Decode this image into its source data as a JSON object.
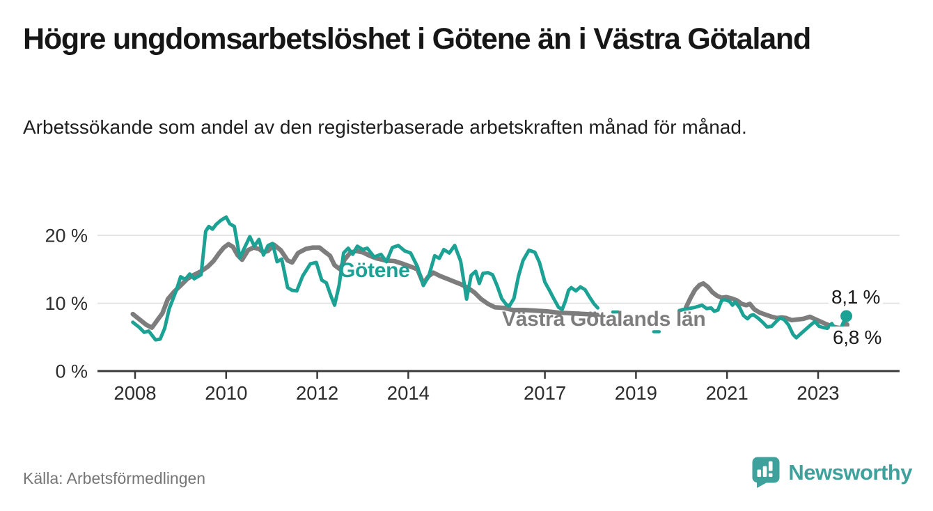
{
  "header": {
    "title": "Högre ungdomsarbetslöshet i Götene än i Västra Götaland",
    "subtitle": "Arbetssökande som andel av den registerbaserade arbetskraften månad för månad."
  },
  "chart_data": {
    "type": "line",
    "title": "Högre ungdomsarbetslöshet i Götene än i Västra Götaland",
    "unit": "%",
    "grid": true,
    "x_axis": {
      "range": [
        2007.2,
        2024.8
      ],
      "ticks": [
        {
          "value": 2008,
          "label": "2008"
        },
        {
          "value": 2010,
          "label": "2010"
        },
        {
          "value": 2012,
          "label": "2012"
        },
        {
          "value": 2014,
          "label": "2014"
        },
        {
          "value": 2017,
          "label": "2017"
        },
        {
          "value": 2019,
          "label": "2019"
        },
        {
          "value": 2021,
          "label": "2021"
        },
        {
          "value": 2023,
          "label": "2023"
        }
      ]
    },
    "y_axis": {
      "range": [
        0,
        24
      ],
      "ticks": [
        {
          "value": 0,
          "label": "0 %"
        },
        {
          "value": 10,
          "label": "10 %"
        },
        {
          "value": 20,
          "label": "20 %"
        }
      ]
    },
    "series": [
      {
        "name": "Västra Götalands län",
        "color": "#7D7D7D",
        "segments": [
          [
            [
              2007.95,
              8.4
            ],
            [
              2008.1,
              7.6
            ],
            [
              2008.25,
              6.8
            ],
            [
              2008.37,
              6.4
            ],
            [
              2008.5,
              7.6
            ],
            [
              2008.6,
              8.5
            ],
            [
              2008.72,
              10.6
            ],
            [
              2008.86,
              11.7
            ],
            [
              2009.0,
              12.6
            ],
            [
              2009.15,
              13.6
            ],
            [
              2009.3,
              14.2
            ],
            [
              2009.45,
              14.7
            ],
            [
              2009.6,
              15.4
            ],
            [
              2009.72,
              16.2
            ],
            [
              2009.85,
              17.4
            ],
            [
              2009.95,
              18.2
            ],
            [
              2010.05,
              18.7
            ],
            [
              2010.15,
              18.3
            ],
            [
              2010.25,
              17.1
            ],
            [
              2010.35,
              16.4
            ],
            [
              2010.48,
              17.8
            ],
            [
              2010.6,
              18.2
            ],
            [
              2010.72,
              18.0
            ],
            [
              2010.82,
              17.5
            ],
            [
              2010.92,
              17.7
            ],
            [
              2011.05,
              18.6
            ],
            [
              2011.2,
              17.8
            ],
            [
              2011.35,
              16.3
            ],
            [
              2011.45,
              16.0
            ],
            [
              2011.58,
              17.4
            ],
            [
              2011.75,
              18.0
            ],
            [
              2011.9,
              18.2
            ],
            [
              2012.05,
              18.2
            ],
            [
              2012.18,
              17.5
            ],
            [
              2012.28,
              17.0
            ],
            [
              2012.38,
              15.6
            ],
            [
              2012.5,
              15.0
            ],
            [
              2012.6,
              16.4
            ],
            [
              2012.72,
              17.4
            ],
            [
              2012.85,
              17.7
            ],
            [
              2013.0,
              17.5
            ],
            [
              2013.15,
              17.0
            ],
            [
              2013.3,
              16.6
            ],
            [
              2013.5,
              16.3
            ],
            [
              2013.7,
              16.2
            ],
            [
              2013.88,
              15.8
            ],
            [
              2014.05,
              15.4
            ],
            [
              2014.2,
              15.0
            ],
            [
              2014.33,
              12.9
            ],
            [
              2014.45,
              14.0
            ],
            [
              2014.55,
              14.5
            ],
            [
              2014.7,
              14.0
            ],
            [
              2014.85,
              13.6
            ],
            [
              2015.0,
              13.2
            ],
            [
              2015.15,
              12.8
            ],
            [
              2015.3,
              12.3
            ],
            [
              2015.45,
              11.6
            ],
            [
              2015.6,
              10.6
            ],
            [
              2015.75,
              9.9
            ],
            [
              2015.9,
              9.4
            ],
            [
              2016.1,
              9.3
            ],
            [
              2016.3,
              9.0
            ],
            [
              2016.55,
              9.0
            ],
            [
              2016.8,
              8.9
            ],
            [
              2017.05,
              8.8
            ],
            [
              2017.3,
              8.6
            ],
            [
              2017.6,
              8.5
            ],
            [
              2017.9,
              8.4
            ],
            [
              2018.15,
              8.3
            ]
          ],
          [
            [
              2020.1,
              9.4
            ],
            [
              2020.2,
              10.8
            ],
            [
              2020.3,
              12.0
            ],
            [
              2020.4,
              12.7
            ],
            [
              2020.48,
              12.9
            ],
            [
              2020.58,
              12.4
            ],
            [
              2020.68,
              11.6
            ],
            [
              2020.78,
              11.1
            ],
            [
              2020.88,
              10.8
            ],
            [
              2020.98,
              10.9
            ],
            [
              2021.1,
              10.7
            ],
            [
              2021.22,
              10.4
            ],
            [
              2021.32,
              9.9
            ],
            [
              2021.42,
              9.7
            ],
            [
              2021.5,
              9.9
            ],
            [
              2021.6,
              9.1
            ],
            [
              2021.72,
              8.6
            ],
            [
              2021.85,
              8.3
            ],
            [
              2021.98,
              8.0
            ],
            [
              2022.1,
              7.8
            ],
            [
              2022.2,
              7.9
            ],
            [
              2022.3,
              7.8
            ],
            [
              2022.42,
              7.5
            ],
            [
              2022.55,
              7.6
            ],
            [
              2022.68,
              7.7
            ],
            [
              2022.82,
              8.0
            ],
            [
              2022.95,
              7.6
            ],
            [
              2023.05,
              7.3
            ],
            [
              2023.18,
              6.9
            ],
            [
              2023.3,
              6.6
            ],
            [
              2023.42,
              6.4
            ],
            [
              2023.52,
              6.3
            ],
            [
              2023.62,
              6.8
            ]
          ]
        ],
        "isolated_points": [],
        "end_value": 6.8,
        "end_marker_radius": 4.5
      },
      {
        "name": "Götene",
        "color": "#1CA294",
        "segments": [
          [
            [
              2007.95,
              7.2
            ],
            [
              2008.1,
              6.4
            ],
            [
              2008.2,
              5.7
            ],
            [
              2008.3,
              5.9
            ],
            [
              2008.45,
              4.6
            ],
            [
              2008.55,
              4.7
            ],
            [
              2008.65,
              6.3
            ],
            [
              2008.75,
              9.2
            ],
            [
              2008.9,
              11.8
            ],
            [
              2009.0,
              13.9
            ],
            [
              2009.1,
              13.5
            ],
            [
              2009.2,
              14.3
            ],
            [
              2009.3,
              13.6
            ],
            [
              2009.45,
              14.2
            ],
            [
              2009.55,
              20.6
            ],
            [
              2009.62,
              21.3
            ],
            [
              2009.7,
              20.9
            ],
            [
              2009.78,
              21.6
            ],
            [
              2009.88,
              22.2
            ],
            [
              2010.0,
              22.7
            ],
            [
              2010.08,
              21.7
            ],
            [
              2010.18,
              21.3
            ],
            [
              2010.3,
              16.7
            ],
            [
              2010.42,
              18.4
            ],
            [
              2010.52,
              19.8
            ],
            [
              2010.62,
              18.4
            ],
            [
              2010.72,
              19.4
            ],
            [
              2010.82,
              17.1
            ],
            [
              2010.92,
              18.5
            ],
            [
              2011.02,
              18.8
            ],
            [
              2011.12,
              16.1
            ],
            [
              2011.22,
              16.5
            ],
            [
              2011.35,
              12.3
            ],
            [
              2011.45,
              11.9
            ],
            [
              2011.55,
              11.8
            ],
            [
              2011.68,
              14.0
            ],
            [
              2011.85,
              15.8
            ],
            [
              2011.98,
              16.0
            ],
            [
              2012.1,
              13.4
            ],
            [
              2012.2,
              13.0
            ],
            [
              2012.3,
              11.1
            ],
            [
              2012.38,
              9.7
            ],
            [
              2012.48,
              12.6
            ],
            [
              2012.58,
              17.4
            ],
            [
              2012.68,
              18.1
            ],
            [
              2012.78,
              17.2
            ],
            [
              2012.88,
              18.4
            ],
            [
              2013.0,
              17.9
            ],
            [
              2013.1,
              18.1
            ],
            [
              2013.25,
              16.8
            ],
            [
              2013.4,
              17.2
            ],
            [
              2013.52,
              16.1
            ],
            [
              2013.65,
              18.2
            ],
            [
              2013.78,
              18.5
            ],
            [
              2013.92,
              17.7
            ],
            [
              2014.05,
              17.4
            ],
            [
              2014.2,
              15.4
            ],
            [
              2014.33,
              12.6
            ],
            [
              2014.45,
              14.0
            ],
            [
              2014.58,
              17.0
            ],
            [
              2014.68,
              16.6
            ],
            [
              2014.78,
              17.9
            ],
            [
              2014.9,
              17.4
            ],
            [
              2015.02,
              18.5
            ],
            [
              2015.15,
              16.2
            ],
            [
              2015.28,
              10.6
            ],
            [
              2015.38,
              14.1
            ],
            [
              2015.48,
              14.7
            ],
            [
              2015.56,
              12.9
            ],
            [
              2015.64,
              14.4
            ],
            [
              2015.75,
              14.5
            ],
            [
              2015.85,
              14.2
            ],
            [
              2015.95,
              12.6
            ],
            [
              2016.05,
              10.7
            ],
            [
              2016.15,
              9.8
            ],
            [
              2016.22,
              9.6
            ],
            [
              2016.32,
              10.7
            ],
            [
              2016.42,
              14.0
            ],
            [
              2016.52,
              16.3
            ],
            [
              2016.65,
              17.8
            ],
            [
              2016.78,
              17.5
            ],
            [
              2016.88,
              16.0
            ],
            [
              2017.0,
              13.1
            ],
            [
              2017.1,
              11.9
            ],
            [
              2017.2,
              10.6
            ],
            [
              2017.3,
              9.4
            ],
            [
              2017.38,
              9.1
            ],
            [
              2017.45,
              10.3
            ],
            [
              2017.52,
              11.9
            ],
            [
              2017.58,
              12.3
            ],
            [
              2017.68,
              11.8
            ],
            [
              2017.78,
              12.4
            ],
            [
              2017.88,
              12.0
            ],
            [
              2017.98,
              10.9
            ],
            [
              2018.08,
              9.9
            ],
            [
              2018.16,
              9.3
            ]
          ],
          [
            [
              2019.95,
              8.9
            ],
            [
              2020.05,
              9.1
            ],
            [
              2020.15,
              9.2
            ],
            [
              2020.3,
              9.4
            ],
            [
              2020.45,
              9.7
            ],
            [
              2020.55,
              9.2
            ],
            [
              2020.65,
              9.3
            ],
            [
              2020.72,
              8.8
            ],
            [
              2020.8,
              9.0
            ],
            [
              2020.88,
              10.4
            ],
            [
              2020.95,
              10.5
            ],
            [
              2021.05,
              10.3
            ],
            [
              2021.12,
              9.7
            ],
            [
              2021.18,
              10.2
            ],
            [
              2021.28,
              9.3
            ],
            [
              2021.36,
              8.2
            ],
            [
              2021.45,
              7.7
            ],
            [
              2021.52,
              8.2
            ],
            [
              2021.58,
              8.3
            ],
            [
              2021.68,
              7.8
            ],
            [
              2021.78,
              7.2
            ],
            [
              2021.88,
              6.5
            ],
            [
              2021.98,
              6.6
            ],
            [
              2022.08,
              7.3
            ],
            [
              2022.16,
              7.8
            ],
            [
              2022.25,
              7.6
            ],
            [
              2022.35,
              6.8
            ],
            [
              2022.45,
              5.4
            ],
            [
              2022.52,
              4.9
            ],
            [
              2022.62,
              5.5
            ],
            [
              2022.72,
              6.1
            ],
            [
              2022.82,
              6.7
            ],
            [
              2022.93,
              7.3
            ],
            [
              2023.02,
              6.6
            ],
            [
              2023.12,
              6.4
            ],
            [
              2023.2,
              6.3
            ],
            [
              2023.3,
              7.0
            ],
            [
              2023.4,
              5.9
            ],
            [
              2023.47,
              5.8
            ],
            [
              2023.55,
              7.1
            ],
            [
              2023.62,
              8.1
            ]
          ]
        ],
        "isolated_points": [
          [
            2018.55,
            8.7
          ],
          [
            2019.45,
            5.8
          ]
        ],
        "end_value": 8.1,
        "end_marker_radius": 8.5
      }
    ],
    "end_labels": {
      "gotene": "8,1 %",
      "vastra": "6,8 %"
    },
    "legend_position": "inline-labels"
  },
  "footer": {
    "source": "Källa: Arbetsförmedlingen",
    "brand": "Newsworthy",
    "logo_icon": "bar-chart-exclamation-bubble-icon"
  },
  "colors": {
    "gotene": "#1CA294",
    "vastra_gotaland": "#7D7D7D",
    "gridline": "#DCDCDC",
    "axis": "#3A3A3A",
    "tick_label": "#2D2D2D",
    "title": "#161616",
    "source": "#767676",
    "brand": "#3EA19B"
  }
}
